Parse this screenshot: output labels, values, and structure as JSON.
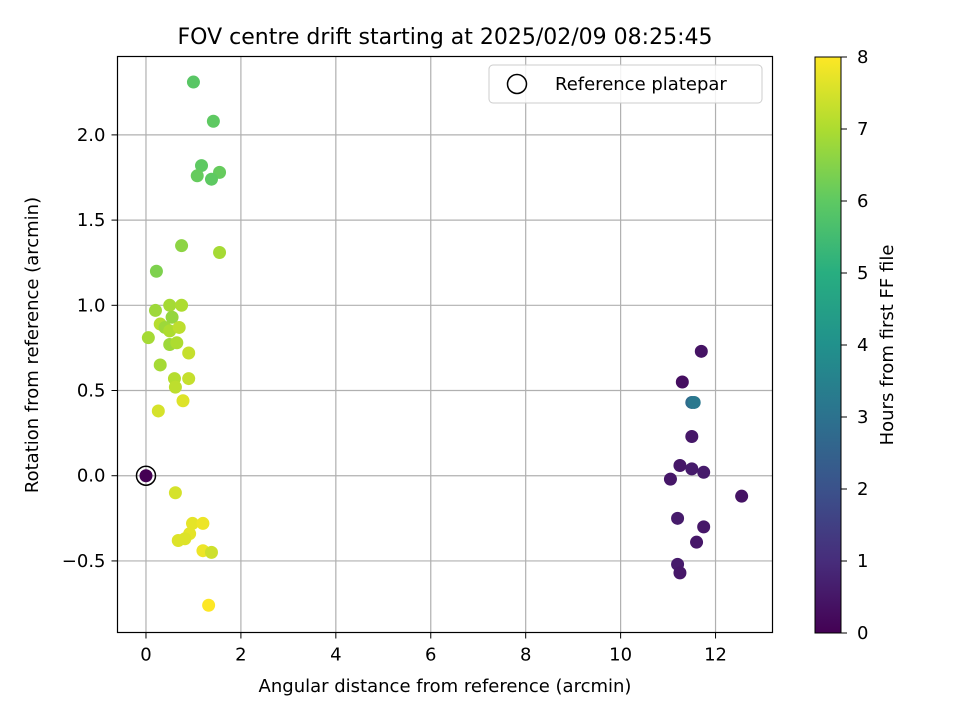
{
  "chart_data": {
    "type": "scatter",
    "title": "FOV centre drift starting at 2025/02/09 08:25:45",
    "xlabel": "Angular distance from reference (arcmin)",
    "ylabel": "Rotation from reference (arcmin)",
    "xlim": [
      -0.6,
      13.2
    ],
    "ylim": [
      -0.92,
      2.46
    ],
    "xticks": [
      0,
      2,
      4,
      6,
      8,
      10,
      12
    ],
    "xtick_labels": [
      "0",
      "2",
      "4",
      "6",
      "8",
      "10",
      "12"
    ],
    "yticks": [
      -0.5,
      0.0,
      0.5,
      1.0,
      1.5,
      2.0
    ],
    "ytick_labels": [
      "−0.5",
      "0.0",
      "0.5",
      "1.0",
      "1.5",
      "2.0"
    ],
    "grid": true,
    "colorbar": {
      "label": "Hours from first FF file",
      "colormap": "viridis",
      "range": [
        0,
        8
      ],
      "ticks": [
        0,
        1,
        2,
        3,
        4,
        5,
        6,
        7,
        8
      ],
      "tick_labels": [
        "0",
        "1",
        "2",
        "3",
        "4",
        "5",
        "6",
        "7",
        "8"
      ]
    },
    "legend": {
      "placement": "top-right",
      "entries": [
        {
          "label": "Reference platepar",
          "marker": "open-circle",
          "color": "#000000"
        }
      ]
    },
    "reference_point": {
      "x": 0.0,
      "y": 0.0
    },
    "points": [
      {
        "x": 0.0,
        "y": 0.0,
        "c": 0.0
      },
      {
        "x": 11.3,
        "y": 0.55,
        "c": 0.3
      },
      {
        "x": 11.7,
        "y": 0.73,
        "c": 0.4
      },
      {
        "x": 11.5,
        "y": 0.23,
        "c": 0.5
      },
      {
        "x": 11.25,
        "y": 0.06,
        "c": 0.5
      },
      {
        "x": 11.5,
        "y": 0.04,
        "c": 0.6
      },
      {
        "x": 11.75,
        "y": 0.02,
        "c": 0.6
      },
      {
        "x": 11.05,
        "y": -0.02,
        "c": 0.5
      },
      {
        "x": 12.55,
        "y": -0.12,
        "c": 0.4
      },
      {
        "x": 11.2,
        "y": -0.25,
        "c": 0.6
      },
      {
        "x": 11.75,
        "y": -0.3,
        "c": 0.5
      },
      {
        "x": 11.6,
        "y": -0.39,
        "c": 0.5
      },
      {
        "x": 11.2,
        "y": -0.52,
        "c": 0.6
      },
      {
        "x": 11.25,
        "y": -0.57,
        "c": 0.5
      },
      {
        "x": 11.5,
        "y": 0.43,
        "c": 2.8
      },
      {
        "x": 11.55,
        "y": 0.43,
        "c": 3.2
      },
      {
        "x": 1.0,
        "y": 2.31,
        "c": 5.9
      },
      {
        "x": 1.42,
        "y": 2.08,
        "c": 6.0
      },
      {
        "x": 1.17,
        "y": 1.82,
        "c": 6.0
      },
      {
        "x": 1.08,
        "y": 1.76,
        "c": 6.1
      },
      {
        "x": 1.55,
        "y": 1.78,
        "c": 6.1
      },
      {
        "x": 1.38,
        "y": 1.74,
        "c": 6.0
      },
      {
        "x": 0.22,
        "y": 1.2,
        "c": 6.4
      },
      {
        "x": 0.75,
        "y": 1.35,
        "c": 6.6
      },
      {
        "x": 1.55,
        "y": 1.31,
        "c": 6.9
      },
      {
        "x": 0.2,
        "y": 0.97,
        "c": 6.8
      },
      {
        "x": 0.5,
        "y": 1.0,
        "c": 6.9
      },
      {
        "x": 0.75,
        "y": 1.0,
        "c": 7.0
      },
      {
        "x": 0.55,
        "y": 0.93,
        "c": 6.7
      },
      {
        "x": 0.3,
        "y": 0.89,
        "c": 7.1
      },
      {
        "x": 0.4,
        "y": 0.87,
        "c": 6.8
      },
      {
        "x": 0.5,
        "y": 0.85,
        "c": 7.0
      },
      {
        "x": 0.7,
        "y": 0.87,
        "c": 7.2
      },
      {
        "x": 0.05,
        "y": 0.81,
        "c": 6.9
      },
      {
        "x": 0.5,
        "y": 0.77,
        "c": 6.8
      },
      {
        "x": 0.65,
        "y": 0.78,
        "c": 7.0
      },
      {
        "x": 0.9,
        "y": 0.72,
        "c": 7.3
      },
      {
        "x": 0.3,
        "y": 0.65,
        "c": 6.9
      },
      {
        "x": 0.6,
        "y": 0.57,
        "c": 7.1
      },
      {
        "x": 0.9,
        "y": 0.57,
        "c": 7.3
      },
      {
        "x": 0.62,
        "y": 0.52,
        "c": 7.2
      },
      {
        "x": 0.78,
        "y": 0.44,
        "c": 7.6
      },
      {
        "x": 0.26,
        "y": 0.38,
        "c": 7.5
      },
      {
        "x": 0.62,
        "y": -0.1,
        "c": 7.5
      },
      {
        "x": 0.98,
        "y": -0.28,
        "c": 7.7
      },
      {
        "x": 1.2,
        "y": -0.28,
        "c": 7.8
      },
      {
        "x": 0.92,
        "y": -0.34,
        "c": 7.7
      },
      {
        "x": 0.82,
        "y": -0.37,
        "c": 7.6
      },
      {
        "x": 0.68,
        "y": -0.38,
        "c": 7.6
      },
      {
        "x": 1.2,
        "y": -0.44,
        "c": 7.8
      },
      {
        "x": 1.38,
        "y": -0.45,
        "c": 7.4
      },
      {
        "x": 1.32,
        "y": -0.76,
        "c": 8.0
      }
    ]
  }
}
